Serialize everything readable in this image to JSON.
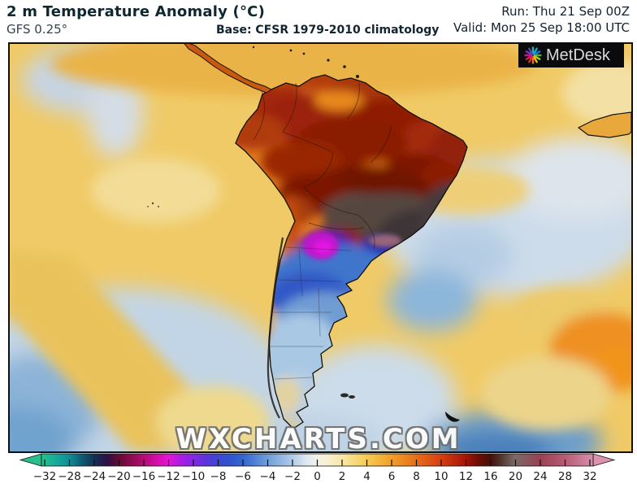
{
  "header": {
    "title": "2 m Temperature Anomaly (°C)",
    "model": "GFS 0.25°",
    "base": "Base: CFSR 1979-2010 climatology",
    "run": "Run: Thu 21 Sep 00Z",
    "valid": "Valid: Mon 25 Sep 18:00 UTC"
  },
  "logo": {
    "text": "MetDesk",
    "icon": "starburst-icon",
    "background": "#0b0b0d"
  },
  "watermark": "WXCHARTS.COM",
  "map": {
    "region": "South America",
    "unit": "°C"
  },
  "colorbar": {
    "labels": [
      "−32",
      "−28",
      "−24",
      "−20",
      "−16",
      "−12",
      "−10",
      "−8",
      "−6",
      "−4",
      "−2",
      "0",
      "2",
      "4",
      "6",
      "8",
      "10",
      "12",
      "16",
      "20",
      "24",
      "28",
      "32"
    ],
    "left_arrow_color": "#25c08e",
    "right_arrow_color": "#dd92ae"
  },
  "colors": {
    "warm_ocean": "#f0ca66",
    "cold_ocean": "#8cb6da",
    "extreme_warm_land": "#3e3438",
    "warm_land": "#9c2408",
    "cold_core": "#c114cc",
    "cold_land": "#3f74cc"
  }
}
